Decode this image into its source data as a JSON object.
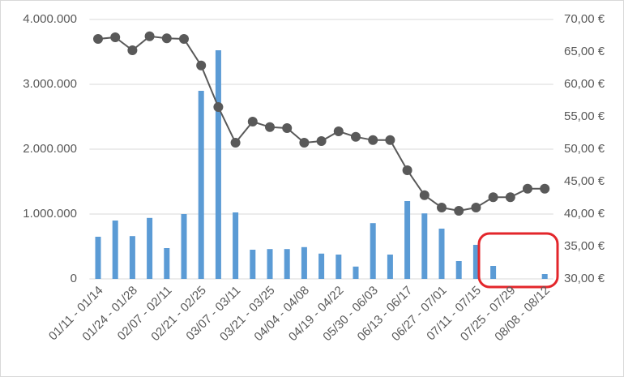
{
  "chart_data": {
    "type": "bar-line",
    "categories": [
      "01/11 - 01/14",
      null,
      "01/24 - 01/28",
      null,
      "02/07 - 02/11",
      null,
      "02/21 - 02/25",
      null,
      "03/07 - 03/11",
      null,
      "03/21 - 03/25",
      null,
      "04/04 - 04/08",
      null,
      "04/19 - 04/22",
      null,
      "05/30 - 06/03",
      null,
      "06/13 - 06/17",
      null,
      "06/27 - 07/01",
      null,
      "07/11 - 07/15",
      null,
      "07/25 - 07/29",
      null,
      "08/08 - 08/12"
    ],
    "series": [
      {
        "type": "bar",
        "color": "#5b9bd5",
        "values": [
          650000,
          900000,
          660000,
          940000,
          475000,
          1000000,
          2900000,
          3525000,
          1025000,
          450000,
          460000,
          460000,
          490000,
          390000,
          375000,
          190000,
          860000,
          375000,
          1200000,
          1010000,
          775000,
          275000,
          525000,
          200000,
          0,
          0,
          75000
        ]
      },
      {
        "type": "line",
        "axis": "y2",
        "color": "#595959",
        "values": [
          67.0,
          67.25,
          65.25,
          67.4,
          67.1,
          67.0,
          62.9,
          56.5,
          51.0,
          54.25,
          53.4,
          53.25,
          51.0,
          51.25,
          52.75,
          51.9,
          51.4,
          51.4,
          46.75,
          42.9,
          41.0,
          40.5,
          41.0,
          42.6,
          42.6,
          43.9,
          43.9
        ]
      }
    ],
    "ylim": [
      0,
      4000000
    ],
    "yticks": [
      0,
      {
        "value": 1000000,
        "label": "1.000.000"
      },
      {
        "value": 2000000,
        "label": "2.000.000"
      },
      {
        "value": 3000000,
        "label": "3.000.000"
      },
      {
        "value": 4000000,
        "label": "4.000.000"
      }
    ],
    "y2lim": [
      30,
      70
    ],
    "y2ticks": [
      {
        "value": 30,
        "label": "30,00 €"
      },
      {
        "value": 35,
        "label": "35,00 €"
      },
      {
        "value": 40,
        "label": "40,00 €"
      },
      {
        "value": 45,
        "label": "45,00 €"
      },
      {
        "value": 50,
        "label": "50,00 €"
      },
      {
        "value": 55,
        "label": "55,00 €"
      },
      {
        "value": 60,
        "label": "60,00 €"
      },
      {
        "value": 65,
        "label": "65,00 €"
      },
      {
        "value": 70,
        "label": "70,00 €"
      }
    ],
    "grid": true
  }
}
